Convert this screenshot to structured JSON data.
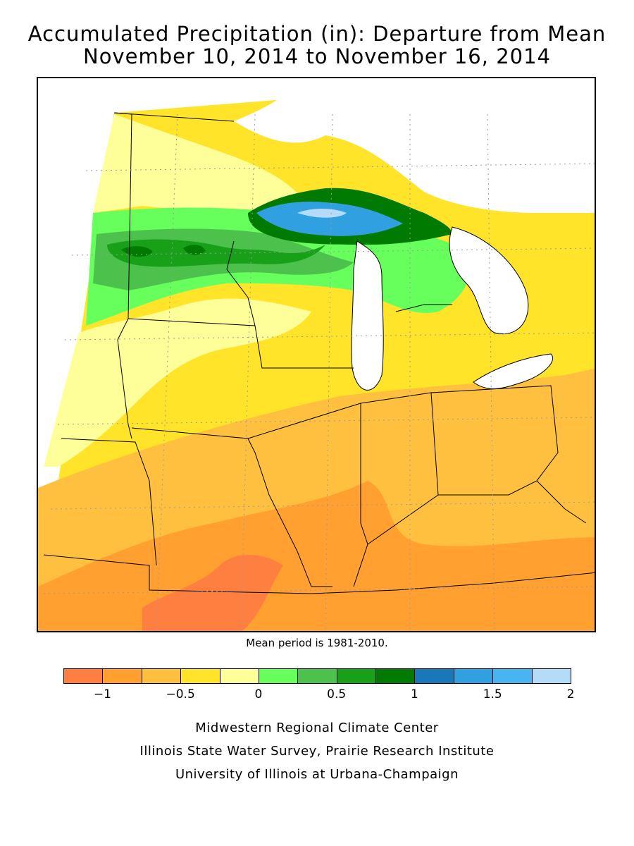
{
  "title_line1": "Accumulated Precipitation (in): Departure from Mean",
  "title_line2": "November 10, 2014 to November 16, 2014",
  "mean_note": "Mean period is 1981-2010.",
  "legend": {
    "colors": [
      "#ff7f40",
      "#ffa030",
      "#ffc040",
      "#ffe42a",
      "#ffff99",
      "#66ff5c",
      "#4cc24c",
      "#18a018",
      "#007a00",
      "#1a78b8",
      "#30a0e0",
      "#48b4f0",
      "#b4dcf8"
    ],
    "ticks": [
      "−1",
      "−0.5",
      "0",
      "0.5",
      "1",
      "1.5",
      "2"
    ]
  },
  "credits": {
    "line1": "Midwestern Regional Climate Center",
    "line2": "Illinois State Water Survey, Prairie Research Institute",
    "line3": "University of Illinois at Urbana-Champaign"
  }
}
